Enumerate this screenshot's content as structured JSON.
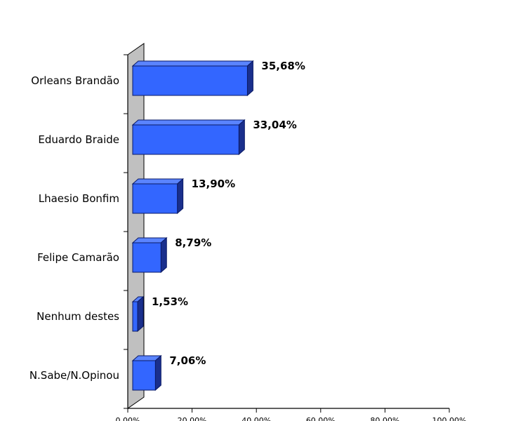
{
  "chart_data": {
    "type": "bar",
    "orientation": "horizontal",
    "style": "3d",
    "categories": [
      "Orleans Brandão",
      "Eduardo Braide",
      "Lhaesio Bonfim",
      "Felipe Camarão",
      "Nenhum destes",
      "N.Sabe/N.Opinou"
    ],
    "values": [
      35.68,
      33.04,
      13.9,
      8.79,
      1.53,
      7.06
    ],
    "value_labels": [
      "35,68%",
      "33,04%",
      "13,90%",
      "8,79%",
      "1,53%",
      "7,06%"
    ],
    "xlim": [
      0,
      100
    ],
    "xticks": [
      0,
      20,
      40,
      60,
      80,
      100
    ],
    "xtick_labels": [
      "0,00%",
      "20,00%",
      "40,00%",
      "60,00%",
      "80,00%",
      "100,00%"
    ],
    "grid": false,
    "legend": "none",
    "colors": {
      "bar_front": "#3366ff",
      "bar_top": "#5a84ff",
      "bar_side": "#1a2f8c",
      "bar_stroke": "#0a1a66",
      "wall": "#c0c0c0"
    }
  }
}
